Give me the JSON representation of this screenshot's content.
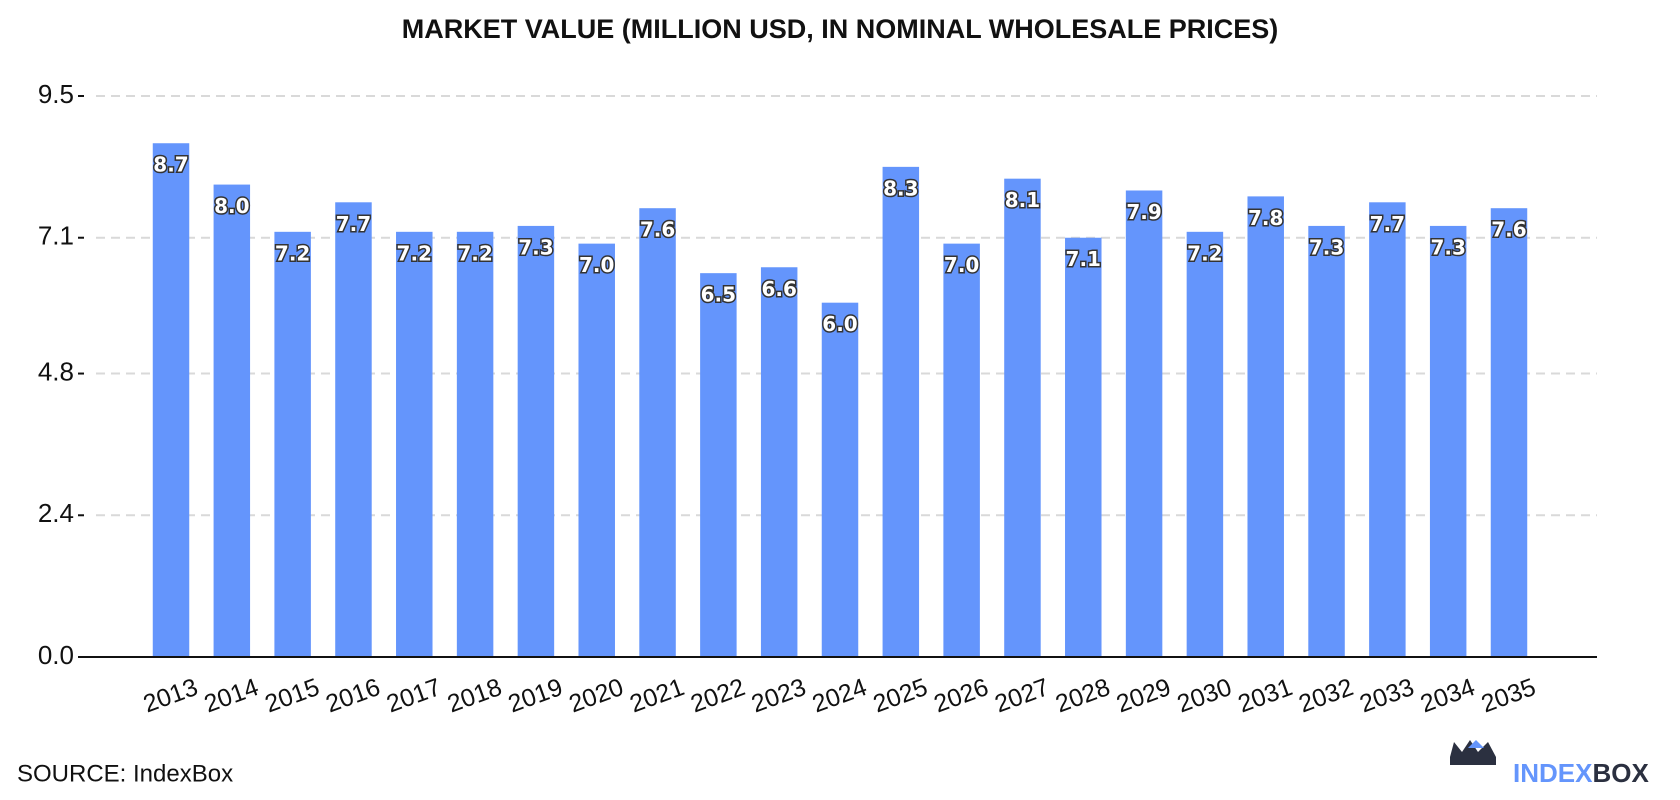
{
  "chart_data": {
    "type": "bar",
    "title": "MARKET VALUE (MILLION USD, IN NOMINAL WHOLESALE PRICES)",
    "categories": [
      "2013",
      "2014",
      "2015",
      "2016",
      "2017",
      "2018",
      "2019",
      "2020",
      "2021",
      "2022",
      "2023",
      "2024",
      "2025",
      "2026",
      "2027",
      "2028",
      "2029",
      "2030",
      "2031",
      "2032",
      "2033",
      "2034",
      "2035"
    ],
    "values": [
      8.7,
      8.0,
      7.2,
      7.7,
      7.2,
      7.2,
      7.3,
      7.0,
      7.6,
      6.5,
      6.6,
      6.0,
      8.3,
      7.0,
      8.1,
      7.1,
      7.9,
      7.2,
      7.8,
      7.3,
      7.7,
      7.3,
      7.6
    ],
    "value_labels": [
      "8.7",
      "8.0",
      "7.2",
      "7.7",
      "7.2",
      "7.2",
      "7.3",
      "7.0",
      "7.6",
      "6.5",
      "6.6",
      "6.0",
      "8.3",
      "7.0",
      "8.1",
      "7.1",
      "7.9",
      "7.2",
      "7.8",
      "7.3",
      "7.7",
      "7.3",
      "7.6"
    ],
    "color": "#6495fc",
    "ylim": [
      0,
      9.5
    ],
    "yticks": [
      {
        "value": 0,
        "label": "0.0"
      },
      2.4,
      4.8,
      7.1,
      9.5
    ],
    "grid": true
  },
  "source": "SOURCE: IndexBox",
  "logo": {
    "first": "INDEX",
    "second": "BOX"
  }
}
